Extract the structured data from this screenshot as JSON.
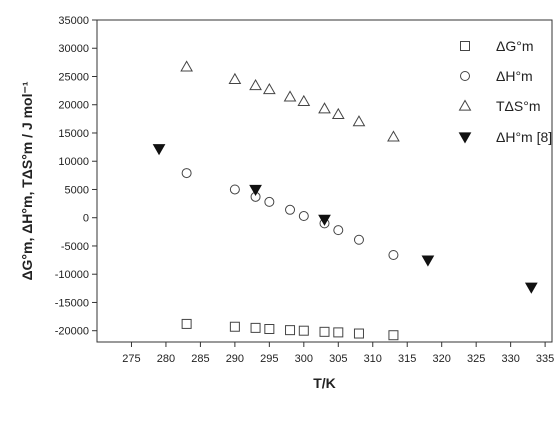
{
  "chart_data": {
    "type": "scatter",
    "xlabel": "T/K",
    "ylabel": "ΔG°m, ΔH°m, TΔS°m / J mol⁻¹",
    "xlim": [
      270,
      336
    ],
    "ylim": [
      -22000,
      35000
    ],
    "xticks": [
      275,
      280,
      285,
      290,
      295,
      300,
      305,
      310,
      315,
      320,
      325,
      330,
      335
    ],
    "yticks": [
      -20000,
      -15000,
      -10000,
      -5000,
      0,
      5000,
      10000,
      15000,
      20000,
      25000,
      30000,
      35000
    ],
    "grid": false,
    "legend_position": "top-right",
    "series": [
      {
        "name": "ΔG°m",
        "marker": "open-square",
        "color": "#444444",
        "points": [
          [
            283,
            -18800
          ],
          [
            290,
            -19300
          ],
          [
            293,
            -19500
          ],
          [
            295,
            -19700
          ],
          [
            298,
            -19900
          ],
          [
            300,
            -20000
          ],
          [
            303,
            -20200
          ],
          [
            305,
            -20300
          ],
          [
            308,
            -20500
          ],
          [
            313,
            -20800
          ]
        ]
      },
      {
        "name": "ΔH°m",
        "marker": "open-circle",
        "color": "#444444",
        "points": [
          [
            283,
            7900
          ],
          [
            290,
            5000
          ],
          [
            293,
            3700
          ],
          [
            295,
            2800
          ],
          [
            298,
            1400
          ],
          [
            300,
            300
          ],
          [
            303,
            -1000
          ],
          [
            305,
            -2200
          ],
          [
            308,
            -3900
          ],
          [
            313,
            -6600
          ]
        ]
      },
      {
        "name": "TΔS°m",
        "marker": "open-triangle-up",
        "color": "#444444",
        "points": [
          [
            283,
            26700
          ],
          [
            290,
            24500
          ],
          [
            293,
            23400
          ],
          [
            295,
            22700
          ],
          [
            298,
            21400
          ],
          [
            300,
            20600
          ],
          [
            303,
            19300
          ],
          [
            305,
            18300
          ],
          [
            308,
            17000
          ],
          [
            313,
            14300
          ]
        ]
      },
      {
        "name": "ΔH°m [8]",
        "marker": "filled-triangle-down",
        "color": "#111111",
        "points": [
          [
            279,
            12200
          ],
          [
            293,
            5000
          ],
          [
            303,
            -300
          ],
          [
            318,
            -7500
          ],
          [
            333,
            -12300
          ]
        ]
      }
    ]
  }
}
